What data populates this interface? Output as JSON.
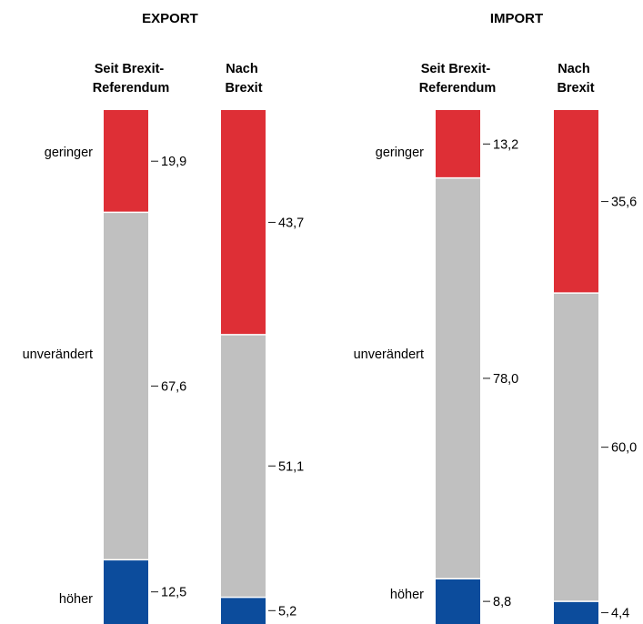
{
  "chart_data": {
    "type": "stacked-bar",
    "orientation": "vertical",
    "stack_order": [
      "geringer",
      "unverändert",
      "höher"
    ],
    "colors": {
      "geringer": "#de2f36",
      "unverändert": "#c0c0c0",
      "höher": "#0c4c9c"
    },
    "groups": [
      {
        "title": "EXPORT",
        "categories": [
          "geringer",
          "unverändert",
          "höher"
        ],
        "bars": [
          {
            "label": [
              "Seit Brexit-",
              "Referendum"
            ],
            "values": [
              "19,9",
              "67,6",
              "12,5"
            ]
          },
          {
            "label": [
              "Nach",
              "Brexit"
            ],
            "values": [
              "43,7",
              "51,1",
              "5,2"
            ]
          }
        ]
      },
      {
        "title": "IMPORT",
        "categories": [
          "geringer",
          "unverändert",
          "höher"
        ],
        "bars": [
          {
            "label": [
              "Seit Brexit-",
              "Referendum"
            ],
            "values": [
              "13,2",
              "78,0",
              "8,8"
            ]
          },
          {
            "label": [
              "Nach",
              "Brexit"
            ],
            "values": [
              "35,6",
              "60,0",
              "4,4"
            ]
          }
        ]
      }
    ]
  }
}
